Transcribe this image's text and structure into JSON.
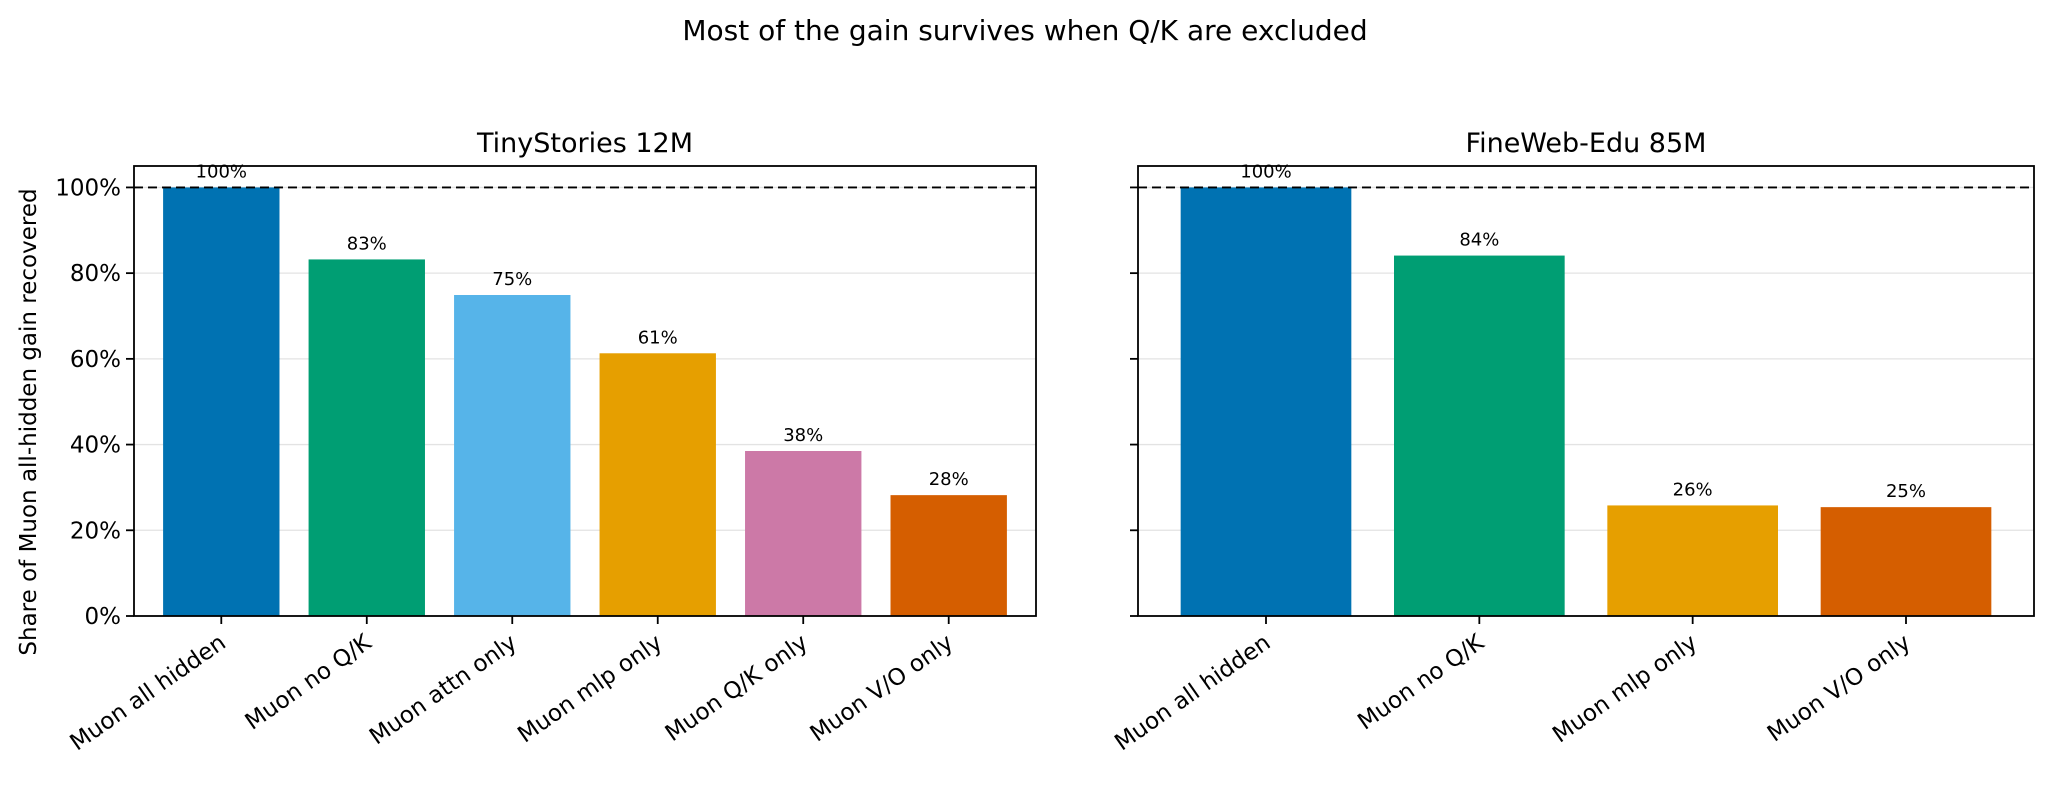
{
  "figure": {
    "suptitle": "Most of the gain survives when Q/K are excluded",
    "ylabel": "Share of Muon all-hidden gain recovered"
  },
  "chart_data": [
    {
      "type": "bar",
      "title": "TinyStories 12M",
      "categories": [
        "Muon all hidden",
        "Muon no Q/K",
        "Muon attn only",
        "Muon mlp only",
        "Muon Q/K only",
        "Muon V/O only"
      ],
      "values": [
        100,
        83.2,
        74.9,
        61.3,
        38.5,
        28.2
      ],
      "data_labels": [
        "100%",
        "83%",
        "75%",
        "61%",
        "38%",
        "28%"
      ],
      "colors": [
        "#0072B2",
        "#009E73",
        "#56B4E9",
        "#E69F00",
        "#CC79A7",
        "#D55E00"
      ],
      "ylim": [
        0,
        105
      ],
      "yticks": [
        0,
        20,
        40,
        60,
        80,
        100
      ],
      "ytick_labels": [
        "0%",
        "20%",
        "40%",
        "60%",
        "80%",
        "100%"
      ],
      "reference_line": 100,
      "grid": "y"
    },
    {
      "type": "bar",
      "title": "FineWeb-Edu 85M",
      "categories": [
        "Muon all hidden",
        "Muon no Q/K",
        "Muon mlp only",
        "Muon V/O only"
      ],
      "values": [
        100,
        84.1,
        25.8,
        25.4
      ],
      "data_labels": [
        "100%",
        "84%",
        "26%",
        "25%"
      ],
      "colors": [
        "#0072B2",
        "#009E73",
        "#E69F00",
        "#D55E00"
      ],
      "ylim": [
        0,
        105
      ],
      "yticks": [
        0,
        20,
        40,
        60,
        80,
        100
      ],
      "reference_line": 100,
      "grid": "y",
      "sharey": true
    }
  ]
}
